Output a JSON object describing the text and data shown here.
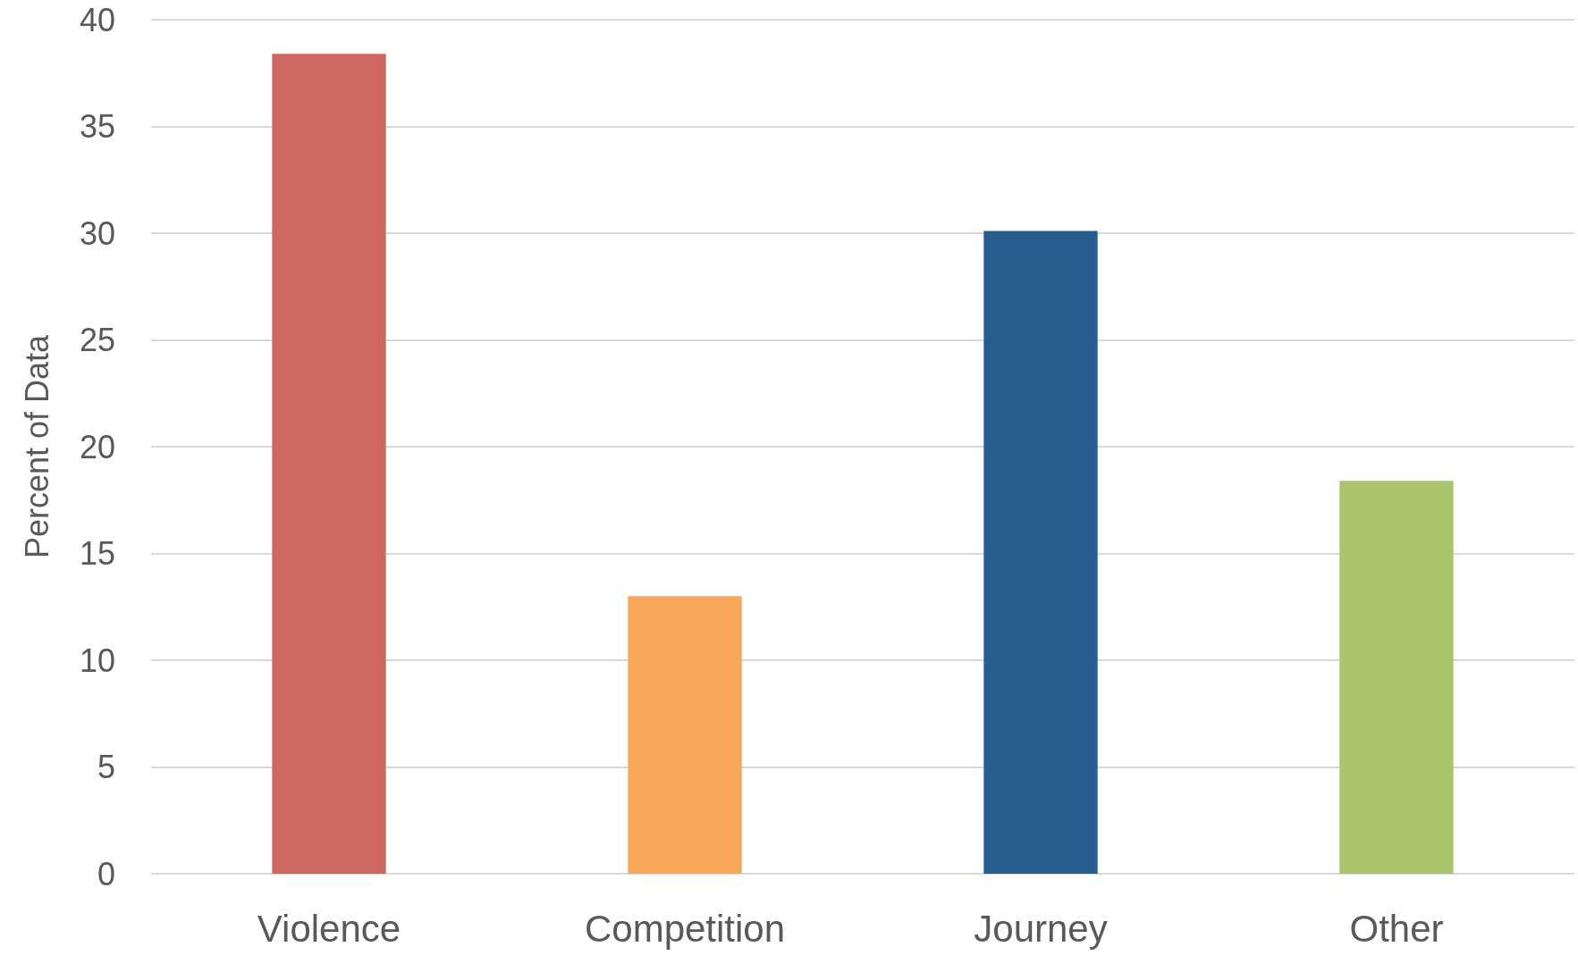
{
  "chart_data": {
    "type": "bar",
    "ylabel": "Percent of Data",
    "categories": [
      "Violence",
      "Competition",
      "Journey",
      "Other"
    ],
    "values": [
      38.4,
      13.0,
      30.1,
      18.4
    ],
    "colors": [
      "#cd6760",
      "#f8a858",
      "#275d8f",
      "#a9c46a"
    ],
    "ylim": [
      0,
      40
    ],
    "yticks": [
      0,
      5,
      10,
      15,
      20,
      25,
      30,
      35,
      40
    ],
    "grid": "y"
  }
}
